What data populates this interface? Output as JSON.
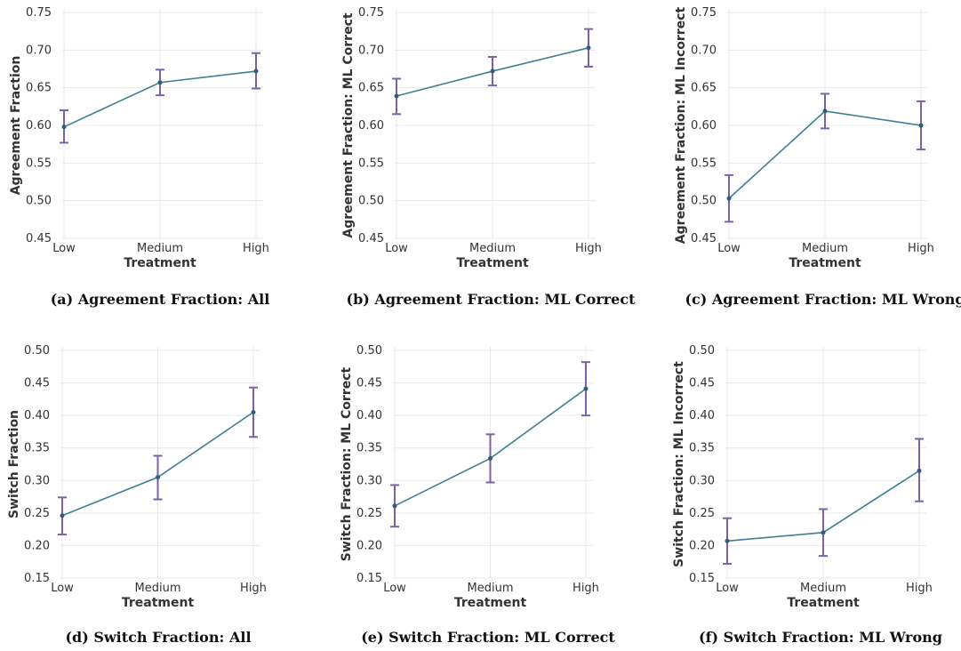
{
  "chart_data": [
    {
      "type": "line",
      "categories": [
        "Low",
        "Medium",
        "High"
      ],
      "values": [
        0.598,
        0.657,
        0.672
      ],
      "error_low": [
        0.577,
        0.64,
        0.649
      ],
      "error_high": [
        0.62,
        0.674,
        0.696
      ],
      "xlabel": "Treatment",
      "ylabel": "Agreement Fraction",
      "ylim": [
        0.45,
        0.75
      ],
      "yticks": [
        "0.45",
        "0.50",
        "0.55",
        "0.60",
        "0.65",
        "0.70",
        "0.75"
      ],
      "caption": "(a) Agreement Fraction: All",
      "grid": true
    },
    {
      "type": "line",
      "categories": [
        "Low",
        "Medium",
        "High"
      ],
      "values": [
        0.639,
        0.672,
        0.703
      ],
      "error_low": [
        0.615,
        0.653,
        0.678
      ],
      "error_high": [
        0.662,
        0.691,
        0.728
      ],
      "xlabel": "Treatment",
      "ylabel": "Agreement Fraction: ML Correct",
      "ylim": [
        0.45,
        0.75
      ],
      "yticks": [
        "0.45",
        "0.50",
        "0.55",
        "0.60",
        "0.65",
        "0.70",
        "0.75"
      ],
      "caption": "(b) Agreement Fraction: ML Correct",
      "grid": true
    },
    {
      "type": "line",
      "categories": [
        "Low",
        "Medium",
        "High"
      ],
      "values": [
        0.503,
        0.619,
        0.6
      ],
      "error_low": [
        0.472,
        0.596,
        0.568
      ],
      "error_high": [
        0.534,
        0.642,
        0.632
      ],
      "xlabel": "Treatment",
      "ylabel": "Agreement Fraction: ML Incorrect",
      "ylim": [
        0.45,
        0.75
      ],
      "yticks": [
        "0.45",
        "0.50",
        "0.55",
        "0.60",
        "0.65",
        "0.70",
        "0.75"
      ],
      "caption": "(c) Agreement Fraction: ML Wrong",
      "grid": true
    },
    {
      "type": "line",
      "categories": [
        "Low",
        "Medium",
        "High"
      ],
      "values": [
        0.246,
        0.305,
        0.405
      ],
      "error_low": [
        0.217,
        0.271,
        0.367
      ],
      "error_high": [
        0.274,
        0.338,
        0.443
      ],
      "xlabel": "Treatment",
      "ylabel": "Switch Fraction",
      "ylim": [
        0.15,
        0.5
      ],
      "yticks": [
        "0.15",
        "0.20",
        "0.25",
        "0.30",
        "0.35",
        "0.40",
        "0.45",
        "0.50"
      ],
      "caption": "(d) Switch Fraction: All",
      "grid": true
    },
    {
      "type": "line",
      "categories": [
        "Low",
        "Medium",
        "High"
      ],
      "values": [
        0.261,
        0.334,
        0.441
      ],
      "error_low": [
        0.229,
        0.297,
        0.4
      ],
      "error_high": [
        0.293,
        0.371,
        0.482
      ],
      "xlabel": "Treatment",
      "ylabel": "Switch Fraction: ML Correct",
      "ylim": [
        0.15,
        0.5
      ],
      "yticks": [
        "0.15",
        "0.20",
        "0.25",
        "0.30",
        "0.35",
        "0.40",
        "0.45",
        "0.50"
      ],
      "caption": "(e) Switch Fraction: ML Correct",
      "grid": true
    },
    {
      "type": "line",
      "categories": [
        "Low",
        "Medium",
        "High"
      ],
      "values": [
        0.207,
        0.22,
        0.315
      ],
      "error_low": [
        0.172,
        0.184,
        0.268
      ],
      "error_high": [
        0.242,
        0.256,
        0.364
      ],
      "xlabel": "Treatment",
      "ylabel": "Switch Fraction: ML Incorrect",
      "ylim": [
        0.15,
        0.5
      ],
      "yticks": [
        "0.15",
        "0.20",
        "0.25",
        "0.30",
        "0.35",
        "0.40",
        "0.45",
        "0.50"
      ],
      "caption": "(f) Switch Fraction: ML Wrong",
      "grid": true
    }
  ]
}
